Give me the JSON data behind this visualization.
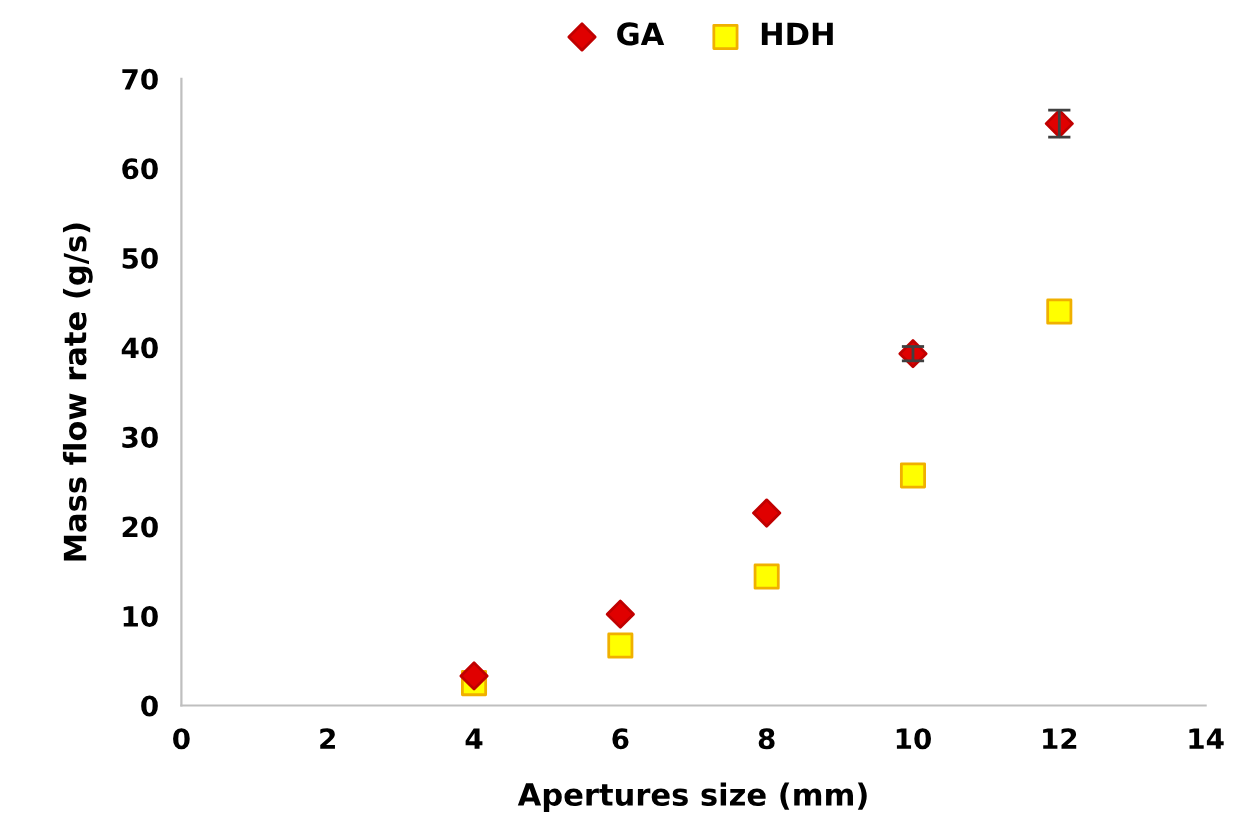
{
  "chart_data": {
    "type": "scatter",
    "xlabel": "Apertures size (mm)",
    "ylabel": "Mass flow rate (g/s)",
    "x": [
      4,
      6,
      8,
      10,
      12
    ],
    "series": [
      {
        "name": "GA",
        "color": "#e00000",
        "marker": "diamond",
        "values": [
          3.3,
          10.2,
          21.5,
          39.3,
          65
        ],
        "errors": [
          null,
          null,
          null,
          0.8,
          1.5
        ]
      },
      {
        "name": "HDH",
        "color": "#ffff00",
        "marker": "square",
        "values": [
          2.5,
          6.7,
          14.4,
          25.7,
          44
        ]
      }
    ],
    "xlim": [
      0,
      14
    ],
    "xticks": [
      0,
      2,
      4,
      6,
      8,
      10,
      12,
      14
    ],
    "ylim": [
      0,
      70
    ],
    "yticks": [
      0,
      10,
      20,
      30,
      40,
      50,
      60,
      70
    ],
    "grid": false,
    "legend": "top"
  }
}
